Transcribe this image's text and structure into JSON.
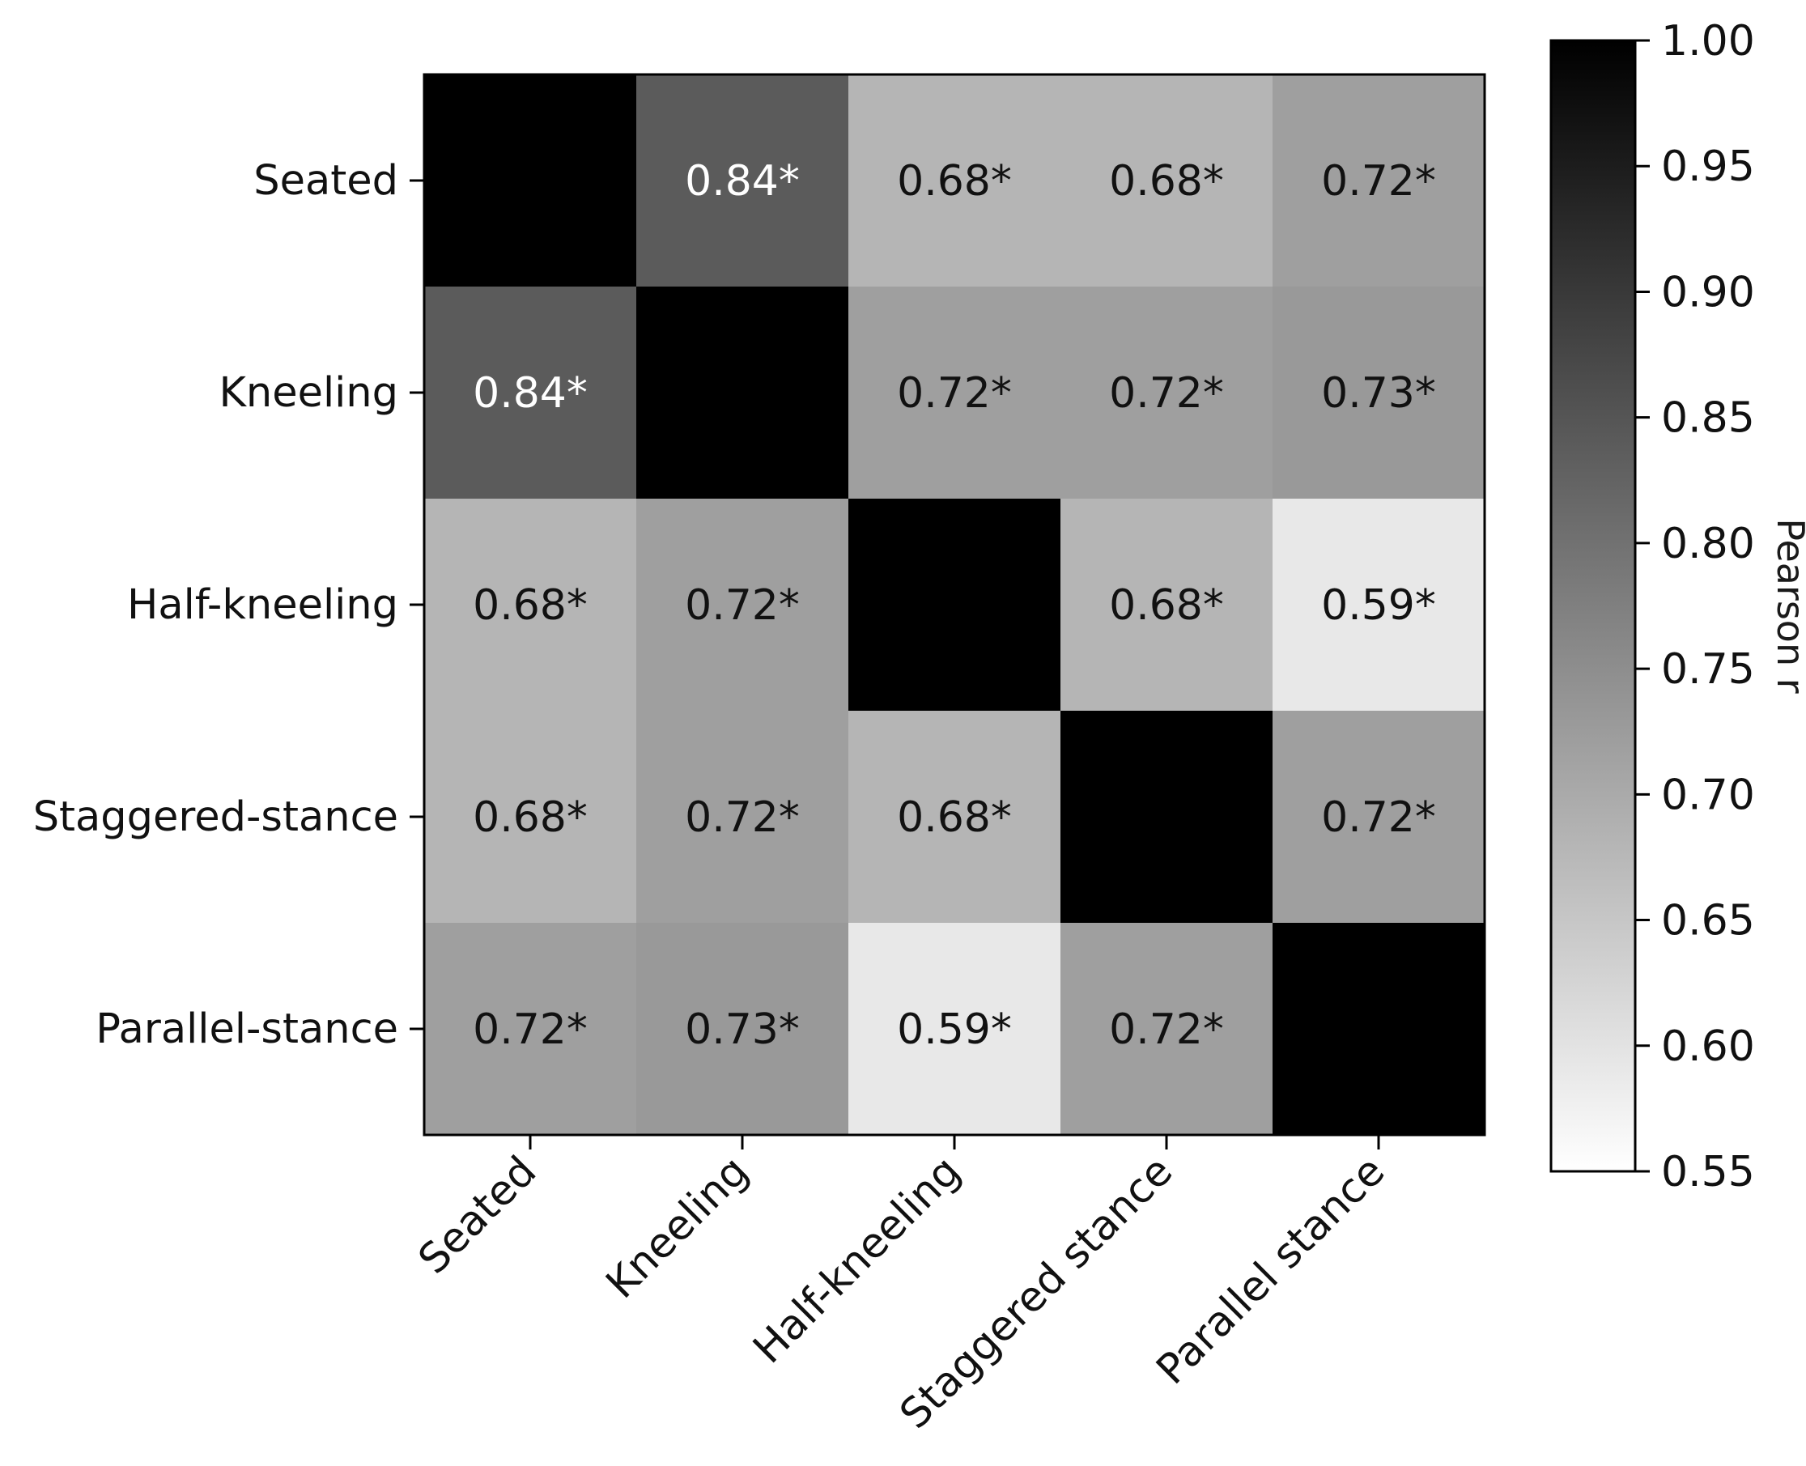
{
  "chart_data": {
    "type": "heatmap",
    "title": "",
    "xlabel": "",
    "ylabel": "",
    "x_categories": [
      "Seated",
      "Kneeling",
      "Half-kneeling",
      "Staggered stance",
      "Parallel stance"
    ],
    "y_categories": [
      "Seated",
      "Kneeling",
      "Half-kneeling",
      "Staggered-stance",
      "Parallel-stance"
    ],
    "values": [
      [
        1.0,
        0.84,
        0.68,
        0.68,
        0.72
      ],
      [
        0.84,
        1.0,
        0.72,
        0.72,
        0.73
      ],
      [
        0.68,
        0.72,
        1.0,
        0.68,
        0.59
      ],
      [
        0.68,
        0.72,
        0.68,
        1.0,
        0.72
      ],
      [
        0.72,
        0.73,
        0.59,
        0.72,
        1.0
      ]
    ],
    "cell_labels": [
      [
        "",
        "0.84*",
        "0.68*",
        "0.68*",
        "0.72*"
      ],
      [
        "0.84*",
        "",
        "0.72*",
        "0.72*",
        "0.73*"
      ],
      [
        "0.68*",
        "0.72*",
        "",
        "0.68*",
        "0.59*"
      ],
      [
        "0.68*",
        "0.72*",
        "0.68*",
        "",
        "0.72*"
      ],
      [
        "0.72*",
        "0.73*",
        "0.59*",
        "0.72*",
        ""
      ]
    ],
    "colormap": "Greys",
    "colorbar": {
      "label": "Pearson r",
      "range": [
        0.55,
        1.0
      ],
      "ticks": [
        "1.00",
        "0.95",
        "0.90",
        "0.85",
        "0.80",
        "0.75",
        "0.70",
        "0.65",
        "0.60",
        "0.55"
      ]
    }
  }
}
